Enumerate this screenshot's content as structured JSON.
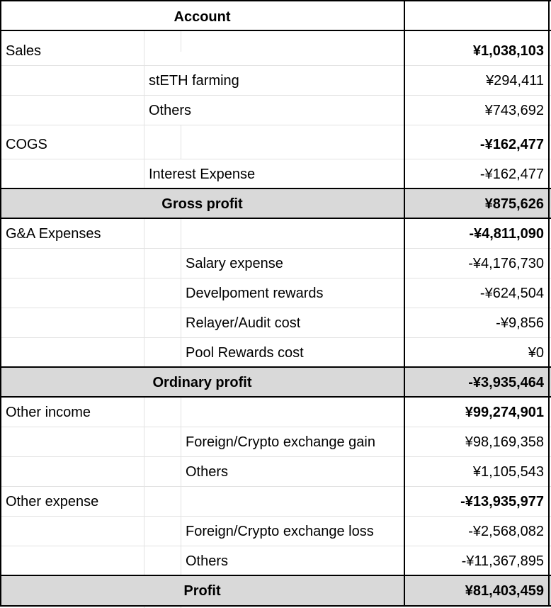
{
  "header": {
    "account_label": "Account",
    "value_label": ""
  },
  "rows": {
    "sales": {
      "label": "Sales",
      "amount": "¥1,038,103"
    },
    "steth_farming": {
      "label": "stETH farming",
      "amount": "¥294,411"
    },
    "sales_others": {
      "label": "Others",
      "amount": "¥743,692"
    },
    "cogs": {
      "label": "COGS",
      "amount": "-¥162,477"
    },
    "interest_expense": {
      "label": "Interest Expense",
      "amount": "-¥162,477"
    },
    "gross_profit": {
      "label": "Gross profit",
      "amount": "¥875,626"
    },
    "ga_expenses": {
      "label": "G&A Expenses",
      "amount": "-¥4,811,090"
    },
    "salary_expense": {
      "label": "Salary expense",
      "amount": "-¥4,176,730"
    },
    "development_rewards": {
      "label": "Develpoment rewards",
      "amount": "-¥624,504"
    },
    "relayer_audit_cost": {
      "label": "Relayer/Audit cost",
      "amount": "-¥9,856"
    },
    "pool_rewards_cost": {
      "label": "Pool Rewards cost",
      "amount": "¥0"
    },
    "ordinary_profit": {
      "label": "Ordinary profit",
      "amount": "-¥3,935,464"
    },
    "other_income": {
      "label": "Other income",
      "amount": "¥99,274,901"
    },
    "fx_gain": {
      "label": "Foreign/Crypto exchange gain",
      "amount": "¥98,169,358"
    },
    "other_income_others": {
      "label": "Others",
      "amount": "¥1,105,543"
    },
    "other_expense": {
      "label": "Other expense",
      "amount": "-¥13,935,977"
    },
    "fx_loss": {
      "label": "Foreign/Crypto exchange loss",
      "amount": "-¥2,568,082"
    },
    "other_expense_others": {
      "label": "Others",
      "amount": "-¥11,367,895"
    },
    "profit": {
      "label": "Profit",
      "amount": "¥81,403,459"
    }
  }
}
